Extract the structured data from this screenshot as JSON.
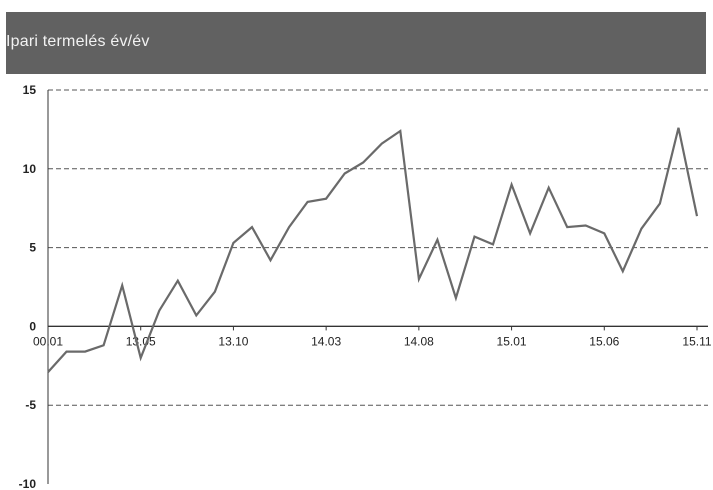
{
  "header": {
    "title": "Ipari termelés év/év"
  },
  "chart_data": {
    "type": "line",
    "title": "Ipari termelés év/év",
    "xlabel": "",
    "ylabel": "",
    "ylim": [
      -10,
      15
    ],
    "y_ticks": [
      15,
      10,
      5,
      0,
      -5,
      -10
    ],
    "y_tick_labels": [
      "15",
      "10",
      "5",
      "0",
      "-5",
      "-10"
    ],
    "x_tick_labels": [
      "00.01",
      "13.05",
      "13.10",
      "14.03",
      "14.08",
      "15.01",
      "15.06",
      "15.11"
    ],
    "x_tick_indices": [
      0,
      5,
      10,
      15,
      20,
      25,
      30,
      35
    ],
    "grid": true,
    "line_color": "#6a6a6a",
    "grid_color": "#555555",
    "series": [
      {
        "values": [
          -2.9,
          -1.6,
          -1.6,
          -1.2,
          2.6,
          -2.0,
          1.0,
          2.9,
          0.7,
          2.2,
          5.3,
          6.3,
          4.2,
          6.3,
          7.9,
          8.1,
          9.7,
          10.4,
          11.6,
          12.4,
          3.0,
          5.5,
          1.8,
          5.7,
          5.2,
          9.0,
          5.9,
          8.8,
          6.3,
          6.4,
          5.9,
          3.5,
          6.2,
          7.8,
          12.6,
          7.0
        ]
      }
    ]
  }
}
